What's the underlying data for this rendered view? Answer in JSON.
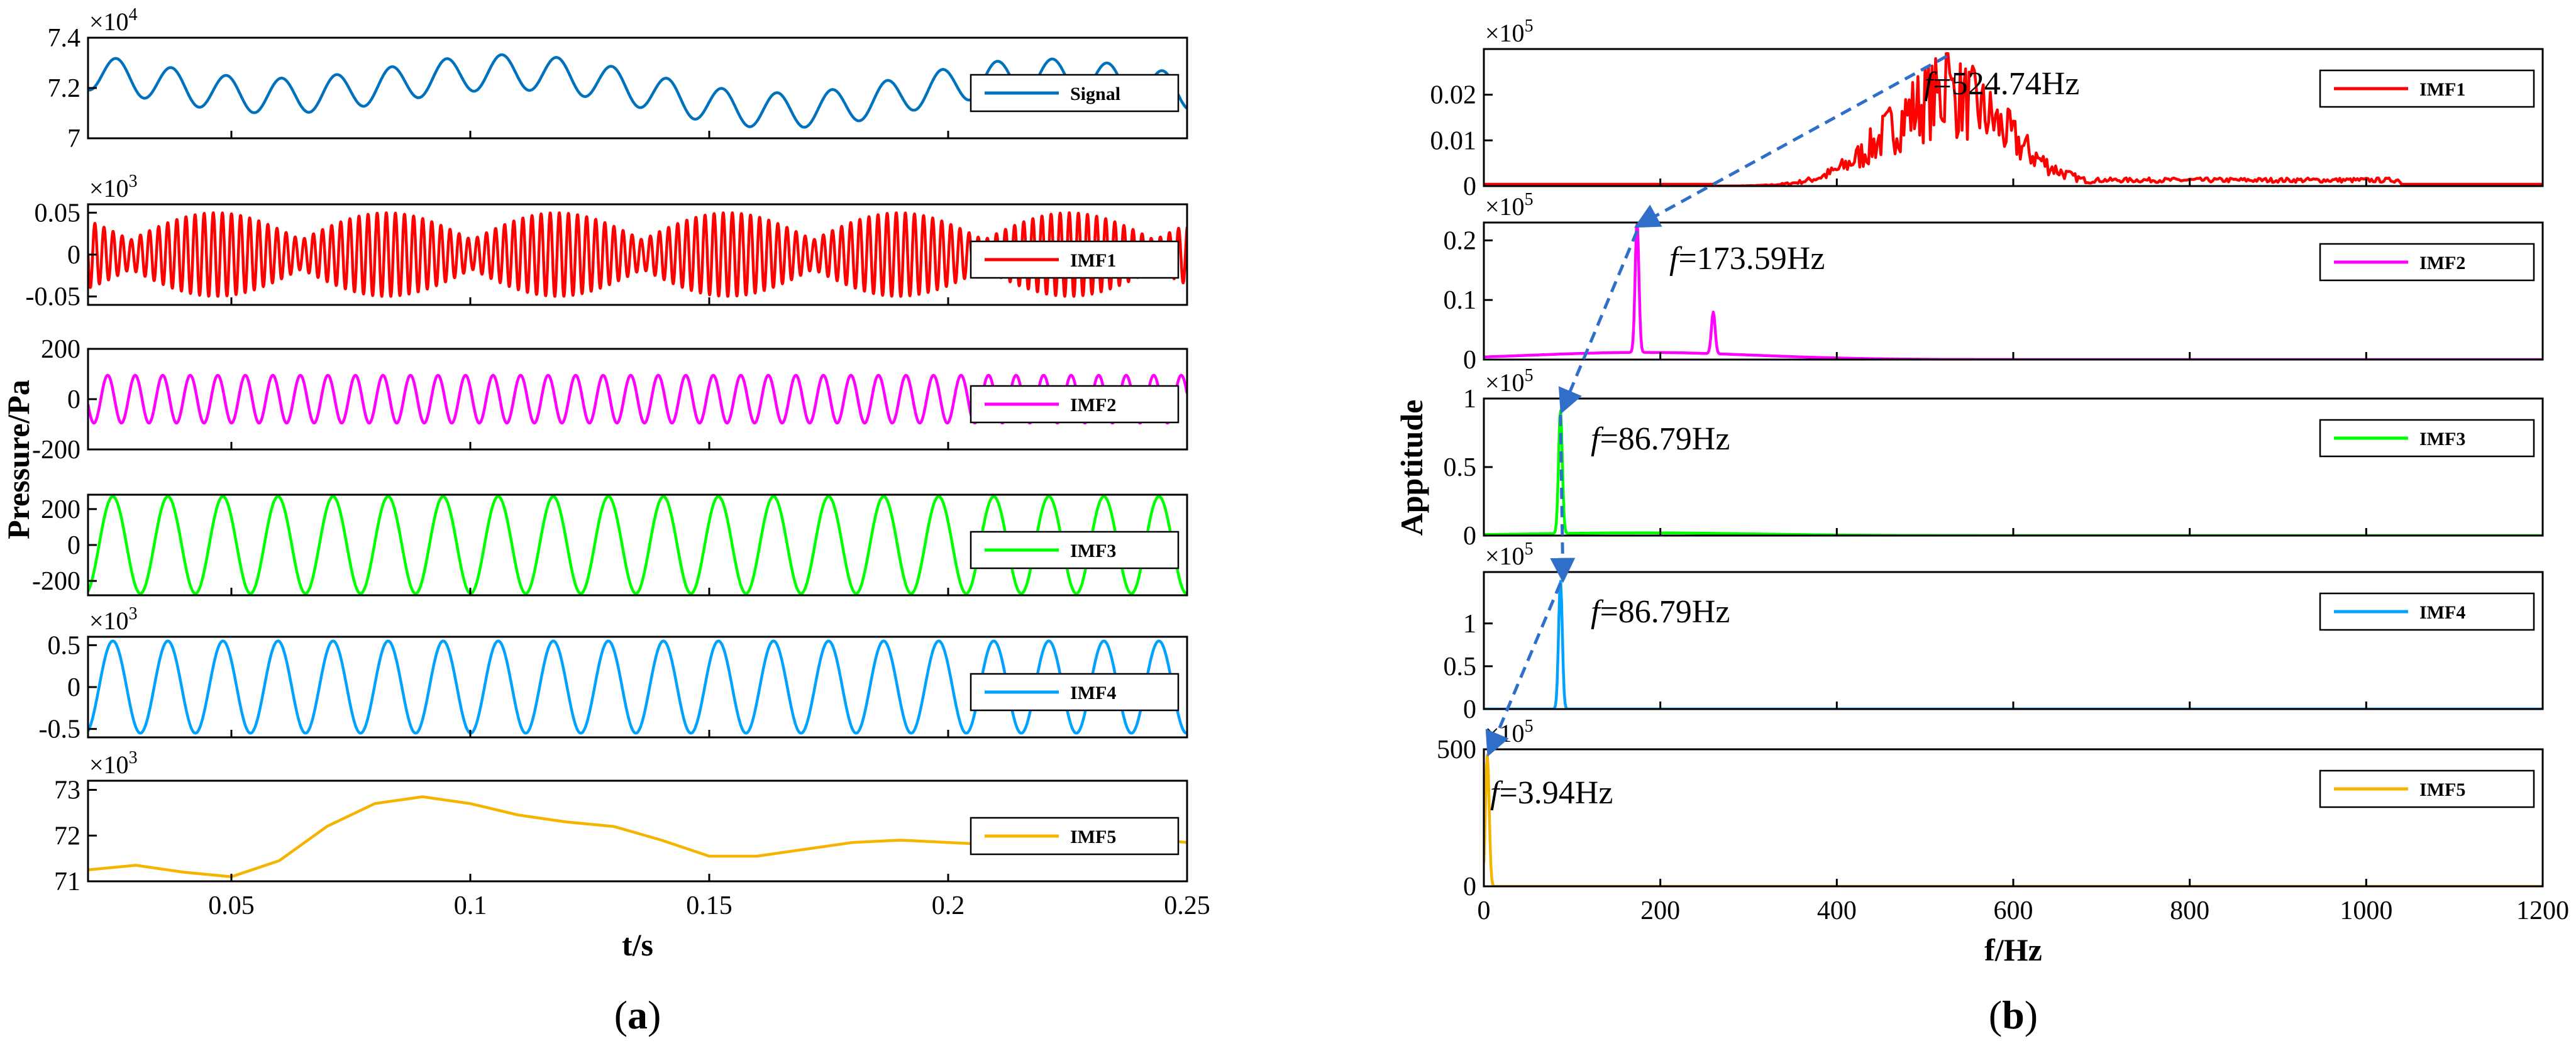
{
  "chart_data": [
    {
      "id": "a",
      "panel_label": "a",
      "type": "line",
      "title": "",
      "xlabel": "t/s",
      "ylabel": "Pressure/Pa",
      "xlim": [
        0.02,
        0.25
      ],
      "x_ticks": [
        0.05,
        0.1,
        0.15,
        0.2,
        0.25
      ],
      "x_tick_labels": [
        "0.05",
        "0.1",
        "0.15",
        "0.2",
        "0.25"
      ],
      "subplots": [
        {
          "name": "Signal",
          "color": "#0072bd",
          "scale_label": "×10",
          "scale_exp": "4",
          "ylim": [
            7,
            7.4
          ],
          "y_ticks": [
            7,
            7.2,
            7.4
          ],
          "y_tick_labels": [
            "7",
            "7.2",
            "7.4"
          ],
          "series": {
            "model": "signal",
            "offset": 7.2,
            "a1": 0.07,
            "f1": 86.79,
            "a2": 0.06,
            "f2": 9.5,
            "a3": 0.03,
            "f3": 4
          }
        },
        {
          "name": "IMF1",
          "color": "#ff0000",
          "scale_label": "×10",
          "scale_exp": "3",
          "ylim": [
            -0.06,
            0.06
          ],
          "y_ticks": [
            -0.05,
            0,
            0.05
          ],
          "y_tick_labels": [
            "-0.05",
            "0",
            "0.05"
          ],
          "series": {
            "model": "burst",
            "amp": 0.05,
            "freq": 524.74,
            "env_freq": 28
          }
        },
        {
          "name": "IMF2",
          "color": "#ff00ff",
          "scale_label": "",
          "scale_exp": "",
          "ylim": [
            -200,
            200
          ],
          "y_ticks": [
            -200,
            0,
            200
          ],
          "y_tick_labels": [
            "-200",
            "0",
            "200"
          ],
          "series": {
            "model": "sine",
            "amp": 95,
            "freq": 173.59
          }
        },
        {
          "name": "IMF3",
          "color": "#00ff00",
          "scale_label": "",
          "scale_exp": "",
          "ylim": [
            -280,
            280
          ],
          "y_ticks": [
            -200,
            0,
            200
          ],
          "y_tick_labels": [
            "-200",
            "0",
            "200"
          ],
          "series": {
            "model": "sine",
            "amp": 270,
            "freq": 86.79
          }
        },
        {
          "name": "IMF4",
          "color": "#00a2ff",
          "scale_label": "×10",
          "scale_exp": "3",
          "ylim": [
            -0.6,
            0.6
          ],
          "y_ticks": [
            -0.5,
            0,
            0.5
          ],
          "y_tick_labels": [
            "-0.5",
            "0",
            "0.5"
          ],
          "series": {
            "model": "sine",
            "amp": 0.55,
            "freq": 86.79
          }
        },
        {
          "name": "IMF5",
          "color": "#f5b400",
          "scale_label": "×10",
          "scale_exp": "3",
          "ylim": [
            71,
            73.2
          ],
          "y_ticks": [
            71,
            72,
            73
          ],
          "y_tick_labels": [
            "71",
            "72",
            "73"
          ],
          "series": {
            "model": "points",
            "x": [
              0.02,
              0.03,
              0.04,
              0.05,
              0.06,
              0.07,
              0.08,
              0.09,
              0.1,
              0.11,
              0.12,
              0.13,
              0.14,
              0.15,
              0.16,
              0.17,
              0.18,
              0.19,
              0.2,
              0.21,
              0.22,
              0.23,
              0.24,
              0.25
            ],
            "y": [
              71.25,
              71.35,
              71.2,
              71.1,
              71.45,
              72.2,
              72.7,
              72.85,
              72.7,
              72.45,
              72.3,
              72.2,
              71.9,
              71.55,
              71.55,
              71.7,
              71.85,
              71.9,
              71.85,
              71.8,
              71.85,
              71.9,
              71.95,
              71.85
            ]
          }
        }
      ]
    },
    {
      "id": "b",
      "panel_label": "b",
      "type": "line",
      "title": "",
      "xlabel": "f/Hz",
      "ylabel": "Apptitude",
      "xlim": [
        0,
        1200
      ],
      "x_ticks": [
        0,
        200,
        400,
        600,
        800,
        1000,
        1200
      ],
      "x_tick_labels": [
        "0",
        "200",
        "400",
        "600",
        "800",
        "1000",
        "1200"
      ],
      "subplots": [
        {
          "name": "IMF1",
          "color": "#ff0000",
          "scale_label": "×10",
          "scale_exp": "5",
          "ylim": [
            0,
            0.03
          ],
          "y_ticks": [
            0,
            0.01,
            0.02
          ],
          "y_tick_labels": [
            "0",
            "0.01",
            "0.02"
          ],
          "annotation": "=524.74Hz",
          "series": {
            "model": "band",
            "center": 524.74,
            "width": 95,
            "peak": 0.029,
            "low": 260,
            "high": 690
          }
        },
        {
          "name": "IMF2",
          "color": "#ff00ff",
          "scale_label": "×10",
          "scale_exp": "5",
          "ylim": [
            0,
            0.23
          ],
          "y_ticks": [
            0,
            0.1,
            0.2
          ],
          "y_tick_labels": [
            "0",
            "0.1",
            "0.2"
          ],
          "annotation": "=173.59Hz",
          "series": {
            "model": "peaks",
            "base": 0.012,
            "peaks": [
              [
                173.59,
                0.22
              ],
              [
                260,
                0.07
              ]
            ]
          }
        },
        {
          "name": "IMF3",
          "color": "#00ff00",
          "scale_label": "×10",
          "scale_exp": "5",
          "ylim": [
            0,
            1
          ],
          "y_ticks": [
            0,
            0.5,
            1
          ],
          "y_tick_labels": [
            "0",
            "0.5",
            "1"
          ],
          "annotation": "=86.79Hz",
          "series": {
            "model": "peaks",
            "base": 0.02,
            "peaks": [
              [
                86.79,
                0.9
              ]
            ]
          }
        },
        {
          "name": "IMF4",
          "color": "#00a2ff",
          "scale_label": "×10",
          "scale_exp": "5",
          "ylim": [
            0,
            1.6
          ],
          "y_ticks": [
            0,
            0.5,
            1
          ],
          "y_tick_labels": [
            "0",
            "0.5",
            "1"
          ],
          "annotation": "=86.79Hz",
          "series": {
            "model": "peaks",
            "base": 0.0,
            "peaks": [
              [
                86.79,
                1.5
              ]
            ]
          }
        },
        {
          "name": "IMF5",
          "color": "#f5b400",
          "scale_label": "×10",
          "scale_exp": "5",
          "ylim": [
            0,
            500
          ],
          "y_ticks": [
            0,
            500
          ],
          "y_tick_labels": [
            "0",
            "500"
          ],
          "annotation": "=3.94Hz",
          "series": {
            "model": "peaks",
            "base": 0.0,
            "peaks": [
              [
                3.94,
                480
              ]
            ]
          }
        }
      ]
    }
  ],
  "annotation_symbol": "f"
}
